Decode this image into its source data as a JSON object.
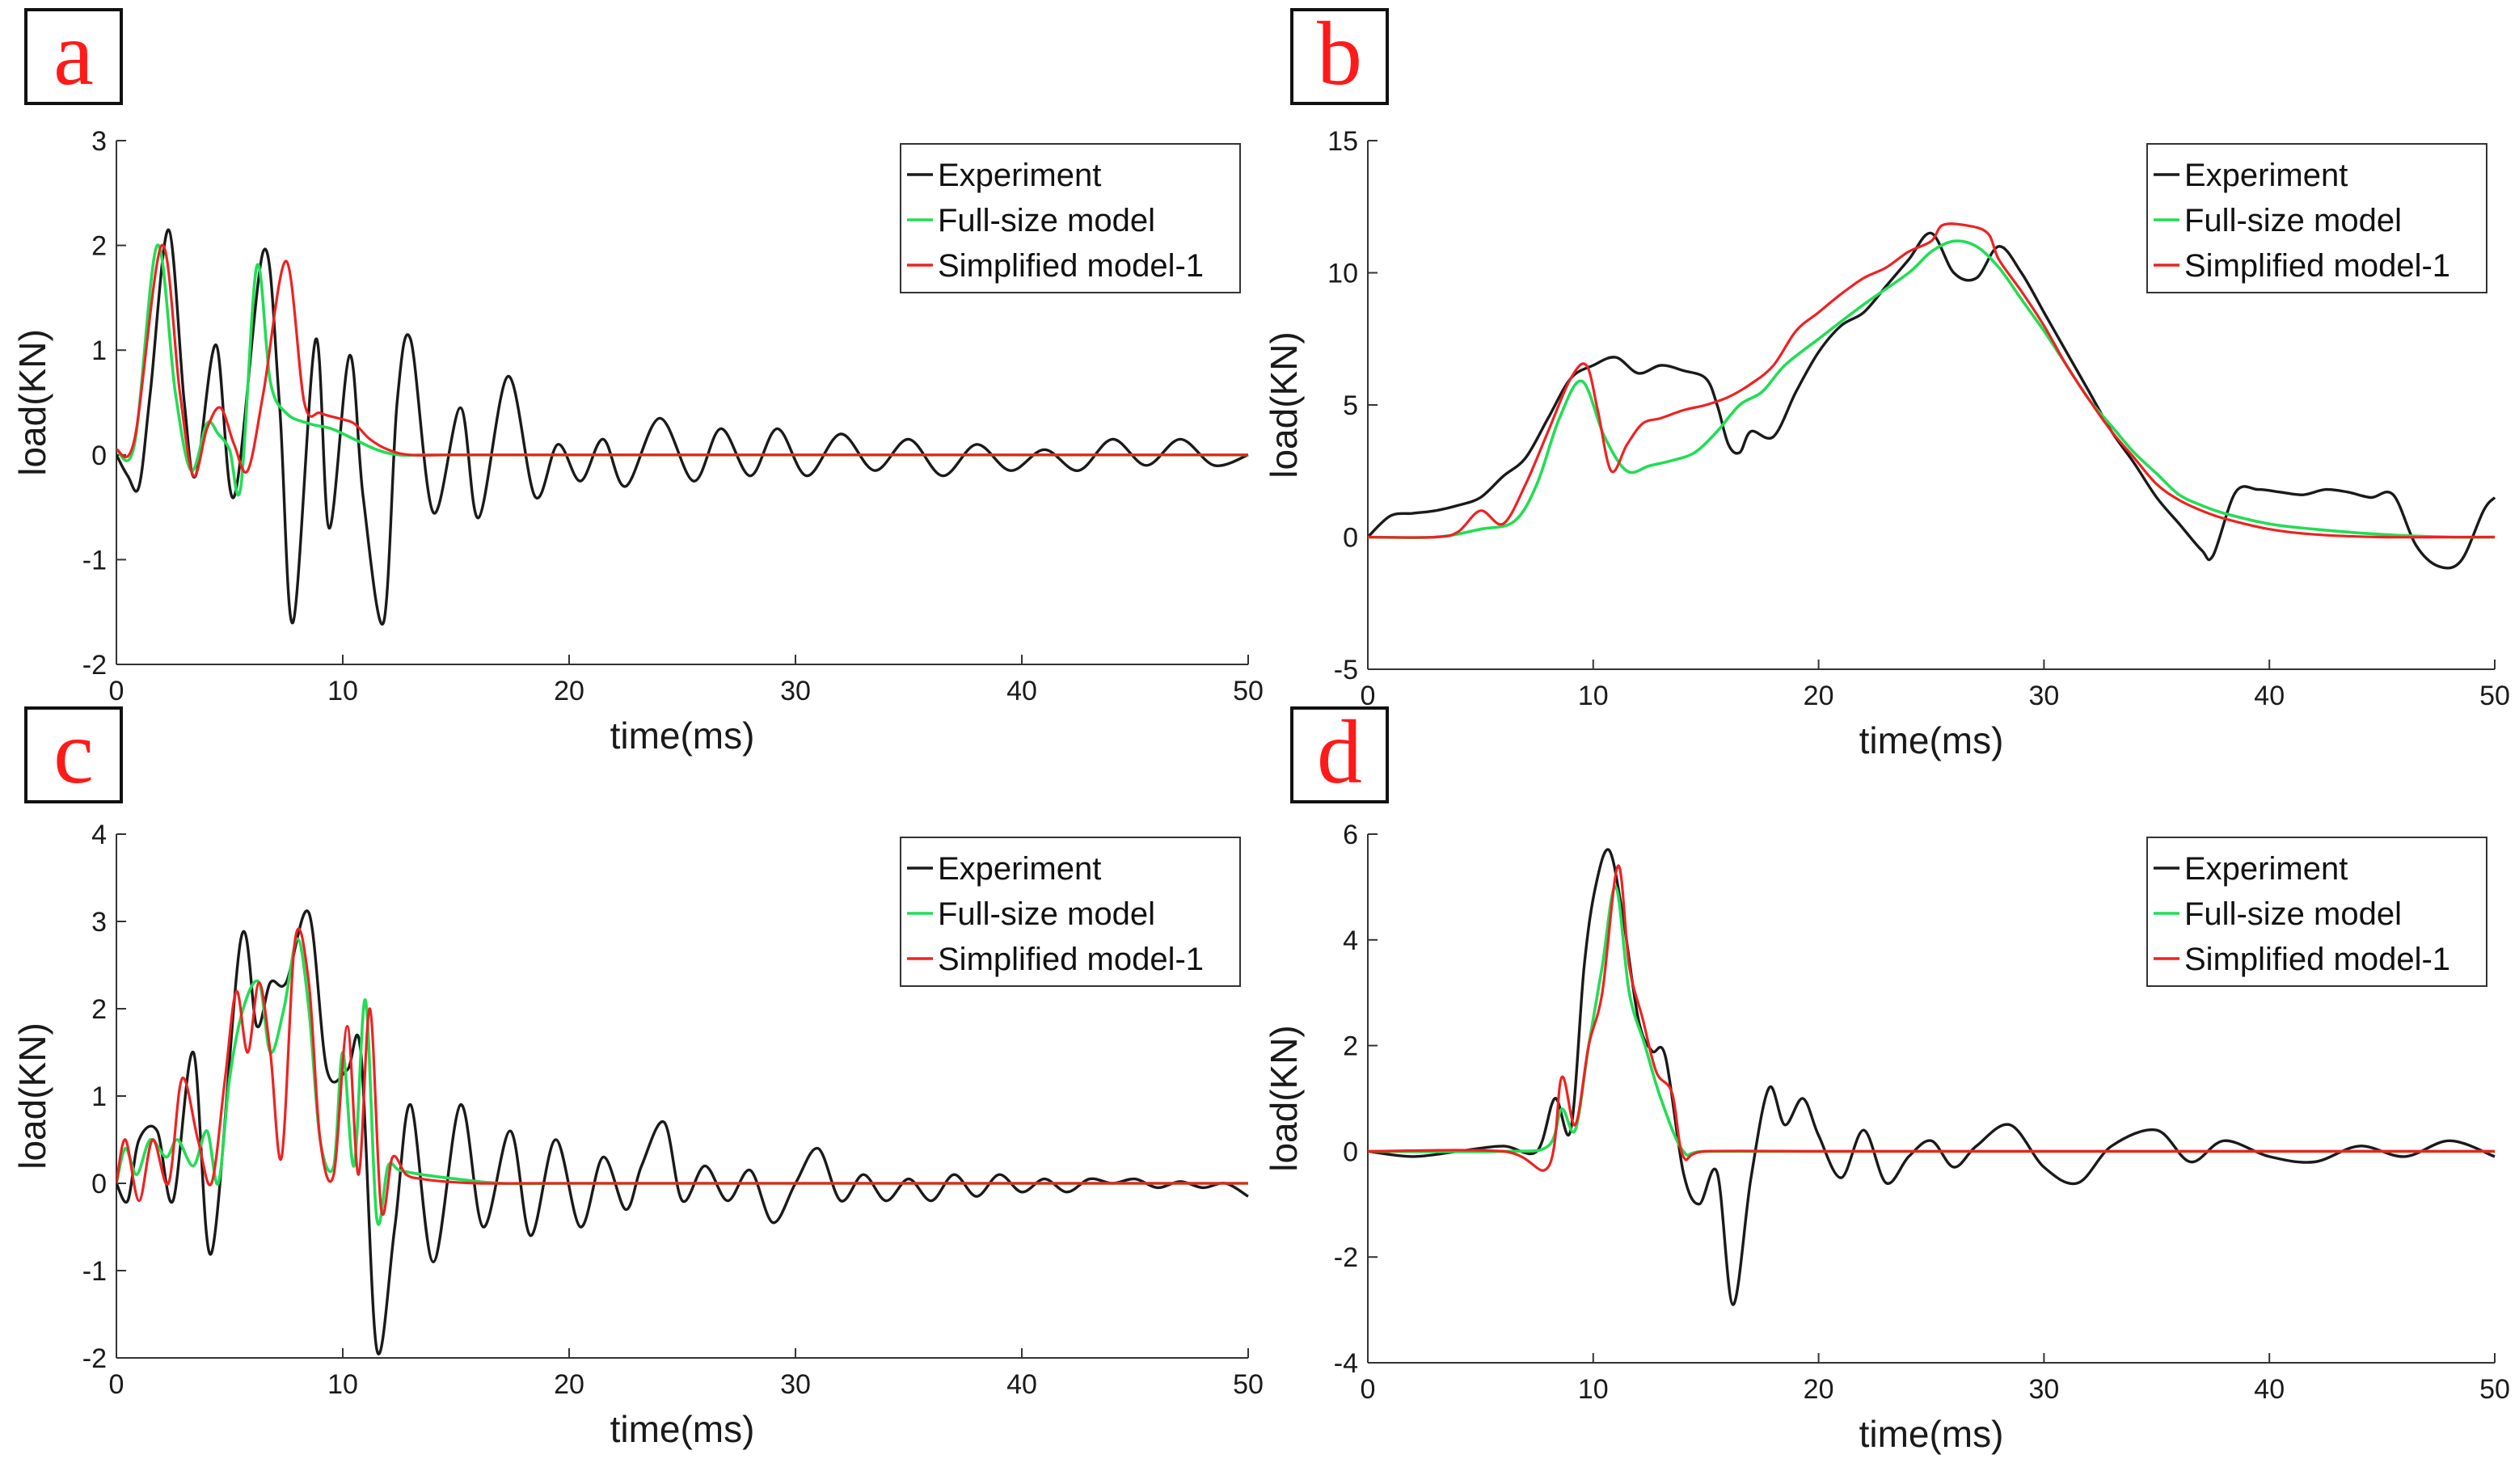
{
  "colors": {
    "experiment": "#1a1a1a",
    "full_size": "#22dd55",
    "simplified": "#ee2222",
    "panel_label": "#ff1a1a"
  },
  "legend": [
    "Experiment",
    "Full-size model",
    "Simplified model-1"
  ],
  "chart_data": [
    {
      "type": "line",
      "panel": "a",
      "xlabel": "time(ms)",
      "ylabel": "load(KN)",
      "xlim": [
        0,
        50
      ],
      "ylim": [
        -2,
        3
      ],
      "xticks": [
        0,
        10,
        20,
        30,
        40,
        50
      ],
      "yticks": [
        -2,
        -1,
        0,
        1,
        2,
        3
      ],
      "series": [
        {
          "name": "Experiment",
          "x": [
            0,
            0.5,
            1,
            1.5,
            2.3,
            3,
            3.5,
            4.4,
            5.2,
            6.5,
            7.2,
            7.8,
            8.8,
            9.4,
            10.3,
            10.9,
            11.8,
            12.4,
            13,
            14,
            15.2,
            16,
            17.3,
            18.5,
            19.5,
            20.5,
            21.5,
            22.5,
            24,
            25.5,
            26.7,
            28,
            29.2,
            30.5,
            32,
            33.5,
            35,
            36.5,
            38,
            39.5,
            41,
            42.5,
            44,
            45.5,
            47,
            48.5,
            50
          ],
          "y": [
            0,
            -0.2,
            -0.3,
            0.6,
            2.15,
            0.5,
            -0.2,
            1.05,
            -0.4,
            1.95,
            0.5,
            -1.6,
            1.1,
            -0.7,
            0.95,
            -0.4,
            -1.6,
            0.5,
            1.1,
            -0.55,
            0.45,
            -0.6,
            0.75,
            -0.4,
            0.1,
            -0.25,
            0.15,
            -0.3,
            0.35,
            -0.25,
            0.25,
            -0.2,
            0.25,
            -0.2,
            0.2,
            -0.15,
            0.15,
            -0.2,
            0.1,
            -0.15,
            0.05,
            -0.15,
            0.15,
            -0.1,
            0.15,
            -0.1,
            0
          ]
        },
        {
          "name": "Full-size model",
          "x": [
            0,
            0.8,
            1.8,
            2.6,
            3.3,
            4,
            4.5,
            5,
            5.5,
            6.2,
            6.8,
            7.5,
            8.5,
            9.5,
            10.5,
            11.5,
            12.5,
            14,
            20,
            30,
            40,
            50
          ],
          "y": [
            0.05,
            0.1,
            2.0,
            0.6,
            -0.15,
            0.3,
            0.2,
            0.05,
            -0.3,
            1.8,
            0.7,
            0.4,
            0.3,
            0.25,
            0.15,
            0.05,
            0.0,
            0,
            0,
            0,
            0,
            0
          ]
        },
        {
          "name": "Simplified model-1",
          "x": [
            0,
            0.8,
            2,
            2.8,
            3.4,
            4,
            4.6,
            5.2,
            5.8,
            6.5,
            7.5,
            8.3,
            9,
            9.8,
            10.5,
            11.2,
            12,
            13,
            15,
            20,
            30,
            40,
            50
          ],
          "y": [
            0.05,
            0.15,
            2.0,
            0.6,
            -0.2,
            0.25,
            0.45,
            0.1,
            -0.15,
            0.6,
            1.85,
            0.5,
            0.4,
            0.35,
            0.3,
            0.15,
            0.05,
            0,
            0,
            0,
            0,
            0,
            0
          ]
        }
      ]
    },
    {
      "type": "line",
      "panel": "b",
      "xlabel": "time(ms)",
      "ylabel": "load(KN)",
      "xlim": [
        0,
        50
      ],
      "ylim": [
        -5,
        15
      ],
      "xticks": [
        0,
        10,
        20,
        30,
        40,
        50
      ],
      "yticks": [
        -5,
        0,
        5,
        10,
        15
      ],
      "series": [
        {
          "name": "Experiment",
          "x": [
            0,
            1,
            2,
            3,
            4,
            5,
            6,
            7,
            8,
            9,
            10,
            11,
            12,
            13,
            14,
            15,
            15.5,
            16,
            16.5,
            17,
            18,
            19,
            20,
            21,
            22,
            23,
            24,
            25,
            26,
            27,
            28,
            29,
            30,
            31,
            32,
            33,
            34,
            35,
            36,
            37,
            37.5,
            38.5,
            39.5,
            40.5,
            41.5,
            42.5,
            43.5,
            44.5,
            45.5,
            46.5,
            47.5,
            48.5,
            49.5,
            50
          ],
          "y": [
            0,
            0.8,
            0.9,
            1.0,
            1.2,
            1.5,
            2.3,
            3.0,
            4.5,
            6.0,
            6.5,
            6.8,
            6.2,
            6.5,
            6.3,
            6.0,
            5.0,
            3.5,
            3.2,
            4.0,
            3.8,
            5.5,
            7.0,
            8.0,
            8.5,
            9.5,
            10.5,
            11.5,
            10.0,
            9.8,
            11.0,
            10.0,
            8.5,
            7.0,
            5.5,
            4.0,
            2.8,
            1.5,
            0.5,
            -0.5,
            -0.7,
            1.7,
            1.8,
            1.7,
            1.6,
            1.8,
            1.7,
            1.5,
            1.6,
            -0.3,
            -1.1,
            -0.9,
            1.0,
            1.5
          ]
        },
        {
          "name": "Full-size model",
          "x": [
            0,
            3,
            5,
            6.5,
            7.5,
            8.5,
            9.5,
            10.5,
            11.5,
            12.5,
            13.5,
            14.5,
            15.5,
            16.5,
            17.5,
            18.5,
            20,
            22,
            24,
            25,
            26,
            27,
            28,
            29,
            30,
            31,
            32,
            33,
            34,
            35,
            36,
            37,
            38,
            40,
            42,
            45,
            48,
            50
          ],
          "y": [
            0,
            0,
            0.3,
            0.6,
            2.0,
            4.5,
            5.9,
            3.8,
            2.5,
            2.7,
            2.9,
            3.2,
            4.0,
            5.0,
            5.5,
            6.5,
            7.5,
            8.8,
            10.0,
            10.8,
            11.2,
            11.0,
            10.2,
            9.0,
            7.8,
            6.5,
            5.2,
            4.2,
            3.2,
            2.4,
            1.6,
            1.2,
            0.9,
            0.5,
            0.3,
            0.1,
            0,
            0
          ]
        },
        {
          "name": "Simplified model-1",
          "x": [
            0,
            3,
            4,
            5,
            6,
            7,
            8,
            9,
            9.7,
            10.2,
            10.8,
            11.5,
            12.2,
            13,
            14,
            15,
            16,
            17,
            18,
            19,
            20,
            21,
            22,
            23,
            24,
            25,
            25.5,
            26.5,
            27.5,
            28,
            29,
            30,
            31,
            32,
            33,
            34,
            35,
            36,
            37,
            38,
            40,
            42,
            45,
            48,
            50
          ],
          "y": [
            0,
            0,
            0.2,
            1.0,
            0.5,
            2.0,
            4.0,
            6.0,
            6.5,
            4.8,
            2.5,
            3.5,
            4.3,
            4.5,
            4.8,
            5.0,
            5.3,
            5.8,
            6.5,
            7.8,
            8.5,
            9.2,
            9.8,
            10.2,
            10.8,
            11.2,
            11.8,
            11.8,
            11.5,
            10.5,
            9.3,
            8.0,
            6.5,
            5.2,
            4.0,
            3.0,
            2.0,
            1.4,
            1.0,
            0.7,
            0.3,
            0.1,
            0,
            0,
            0
          ]
        }
      ]
    },
    {
      "type": "line",
      "panel": "c",
      "xlabel": "time(ms)",
      "ylabel": "load(KN)",
      "xlim": [
        0,
        50
      ],
      "ylim": [
        -2,
        4
      ],
      "xticks": [
        0,
        10,
        20,
        30,
        40,
        50
      ],
      "yticks": [
        -2,
        -1,
        0,
        1,
        2,
        3,
        4
      ],
      "series": [
        {
          "name": "Experiment",
          "x": [
            0,
            0.5,
            1,
            1.8,
            2.5,
            3.4,
            4.2,
            5.5,
            6.2,
            6.8,
            7.5,
            8.5,
            9.3,
            10.2,
            10.8,
            11.5,
            12.3,
            13,
            14,
            15.2,
            16.2,
            17.4,
            18.3,
            19.4,
            20.5,
            21.5,
            22.5,
            23.2,
            24.2,
            25,
            26,
            27,
            28,
            29,
            30,
            31,
            32,
            33,
            34,
            35,
            36,
            37,
            38,
            39,
            40,
            41,
            42,
            43,
            44,
            45,
            46,
            47,
            48,
            49,
            50
          ],
          "y": [
            0.0,
            -0.2,
            0.5,
            0.6,
            -0.2,
            1.5,
            -0.8,
            2.8,
            1.8,
            2.3,
            2.3,
            3.1,
            1.3,
            1.3,
            1.5,
            -1.9,
            -0.5,
            0.9,
            -0.9,
            0.9,
            -0.5,
            0.6,
            -0.6,
            0.5,
            -0.5,
            0.3,
            -0.3,
            0.2,
            0.7,
            -0.2,
            0.2,
            -0.2,
            0.15,
            -0.45,
            0.0,
            0.4,
            -0.2,
            0.1,
            -0.2,
            0.05,
            -0.2,
            0.1,
            -0.15,
            0.1,
            -0.1,
            0.05,
            -0.1,
            0.05,
            0,
            0.05,
            -0.05,
            0.02,
            -0.05,
            0,
            -0.15
          ]
        },
        {
          "name": "Full-size model",
          "x": [
            0,
            0.4,
            0.9,
            1.5,
            2.2,
            2.7,
            3.4,
            4,
            4.5,
            5,
            5.6,
            6.3,
            6.8,
            7.4,
            8,
            8.5,
            9,
            9.6,
            10,
            10.5,
            11,
            11.5,
            12,
            12.5,
            13.5,
            15,
            17,
            20,
            25,
            30,
            35,
            40,
            45,
            50
          ],
          "y": [
            0,
            0.4,
            0.1,
            0.5,
            0.3,
            0.5,
            0.2,
            0.6,
            0.0,
            1.2,
            2.0,
            2.3,
            1.5,
            2.0,
            2.8,
            2.0,
            0.5,
            0.2,
            1.5,
            0.2,
            2.1,
            -0.4,
            0.2,
            0.15,
            0.1,
            0.05,
            0,
            0,
            0,
            0,
            0,
            0,
            0,
            0
          ]
        },
        {
          "name": "Simplified model-1",
          "x": [
            0,
            0.4,
            1,
            1.6,
            2.3,
            2.9,
            3.6,
            4.2,
            4.8,
            5.3,
            5.8,
            6.3,
            6.8,
            7.3,
            7.9,
            8.5,
            9,
            9.6,
            10.2,
            10.7,
            11.2,
            11.7,
            12.2,
            12.8,
            13.5,
            14.5,
            16,
            18,
            20,
            25,
            30,
            35,
            40,
            45,
            50
          ],
          "y": [
            0,
            0.5,
            -0.2,
            0.5,
            0.0,
            1.2,
            0.5,
            0.0,
            1.2,
            2.2,
            1.5,
            2.3,
            1.5,
            0.3,
            2.8,
            2.3,
            0.5,
            0.1,
            1.8,
            0.1,
            2.0,
            -0.3,
            0.3,
            0.1,
            0.05,
            0.02,
            0,
            0,
            0,
            0,
            0,
            0,
            0,
            0,
            0
          ]
        }
      ]
    },
    {
      "type": "line",
      "panel": "d",
      "xlabel": "time(ms)",
      "ylabel": "load(KN)",
      "xlim": [
        0,
        50
      ],
      "ylim": [
        -4,
        6
      ],
      "xticks": [
        0,
        10,
        20,
        30,
        40,
        50
      ],
      "yticks": [
        -4,
        -2,
        0,
        2,
        4,
        6
      ],
      "series": [
        {
          "name": "Experiment",
          "x": [
            0,
            2,
            4,
            6,
            7.5,
            8.3,
            9,
            9.6,
            10.1,
            10.7,
            11.3,
            12,
            12.6,
            13.2,
            14,
            14.7,
            15.5,
            16.2,
            17,
            17.8,
            18.5,
            19.3,
            20,
            21,
            22,
            23,
            24,
            25,
            26,
            27,
            28.5,
            30,
            31.5,
            33,
            35,
            36.5,
            38,
            40,
            42,
            44,
            46,
            48,
            50
          ],
          "y": [
            0,
            -0.1,
            0,
            0.1,
            0,
            1.0,
            0.4,
            3.5,
            5.0,
            5.7,
            4.5,
            2.5,
            1.9,
            1.8,
            -0.4,
            -1.0,
            -0.4,
            -2.9,
            -0.5,
            1.2,
            0.5,
            1.0,
            0.3,
            -0.5,
            0.4,
            -0.6,
            -0.1,
            0.2,
            -0.3,
            0.1,
            0.5,
            -0.3,
            -0.6,
            0.1,
            0.4,
            -0.2,
            0.2,
            -0.1,
            -0.2,
            0.1,
            -0.1,
            0.2,
            -0.1
          ]
        },
        {
          "name": "Full-size model",
          "x": [
            0,
            6,
            8,
            8.6,
            9.2,
            9.8,
            10.4,
            11,
            11.6,
            12.3,
            13,
            14,
            15,
            20,
            25,
            30,
            35,
            40,
            45,
            50
          ],
          "y": [
            0,
            0,
            0.1,
            0.8,
            0.4,
            2.0,
            3.5,
            5.0,
            3.0,
            2.0,
            1.0,
            0.0,
            0,
            0,
            0,
            0,
            0,
            0,
            0,
            0
          ]
        },
        {
          "name": "Simplified model-1",
          "x": [
            0,
            6,
            8,
            8.6,
            9.2,
            9.8,
            10.4,
            11.1,
            11.6,
            12.2,
            12.8,
            13.5,
            14,
            15,
            20,
            25,
            30,
            35,
            40,
            45,
            50
          ],
          "y": [
            0,
            0,
            -0.3,
            1.4,
            0.5,
            2.0,
            3.0,
            5.4,
            3.5,
            2.5,
            1.5,
            1.1,
            -0.1,
            0,
            0,
            0,
            0,
            0,
            0,
            0,
            0
          ]
        }
      ]
    }
  ]
}
